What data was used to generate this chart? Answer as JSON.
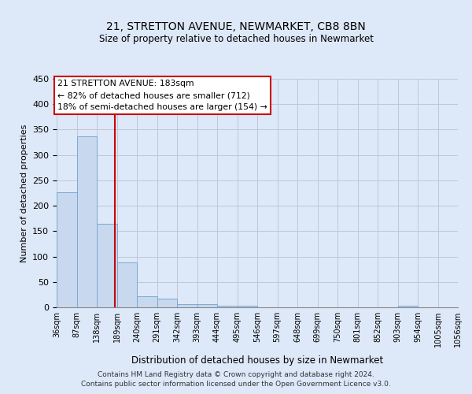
{
  "title": "21, STRETTON AVENUE, NEWMARKET, CB8 8BN",
  "subtitle": "Size of property relative to detached houses in Newmarket",
  "xlabel": "Distribution of detached houses by size in Newmarket",
  "ylabel": "Number of detached properties",
  "bin_edges": [
    36,
    87,
    138,
    189,
    240,
    291,
    342,
    393,
    444,
    495,
    546,
    597,
    648,
    699,
    750,
    801,
    852,
    903,
    954,
    1005,
    1056
  ],
  "bar_heights": [
    227,
    337,
    165,
    89,
    22,
    17,
    6,
    6,
    3,
    3,
    0,
    0,
    0,
    0,
    0,
    0,
    0,
    3,
    0,
    0
  ],
  "bar_color": "#c8d8ee",
  "bar_edge_color": "#7aaad0",
  "vline_color": "#cc0000",
  "vline_x": 183,
  "annotation_title": "21 STRETTON AVENUE: 183sqm",
  "annotation_line1": "← 82% of detached houses are smaller (712)",
  "annotation_line2": "18% of semi-detached houses are larger (154) →",
  "annotation_box_color": "#cc0000",
  "ylim": [
    0,
    450
  ],
  "yticks": [
    0,
    50,
    100,
    150,
    200,
    250,
    300,
    350,
    400,
    450
  ],
  "grid_color": "#c0c8d8",
  "footer_line1": "Contains HM Land Registry data © Crown copyright and database right 2024.",
  "footer_line2": "Contains public sector information licensed under the Open Government Licence v3.0.",
  "bg_color": "#dde8f8",
  "plot_bg_color": "#dde8f8"
}
